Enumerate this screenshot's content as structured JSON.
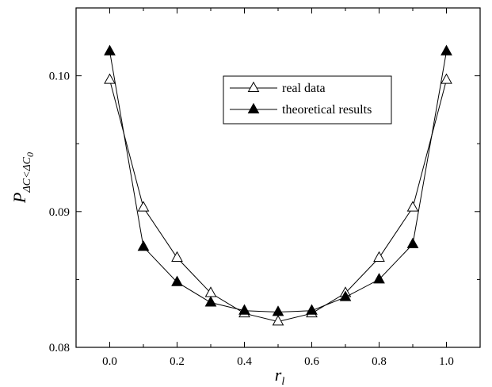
{
  "chart_data": {
    "type": "line",
    "xlabel": "r",
    "xlabel_sub": "l",
    "ylabel": "P",
    "ylabel_sub": "ΔC<ΔC",
    "ylabel_sub2": "0",
    "xlim": [
      -0.1,
      1.1
    ],
    "ylim": [
      0.08,
      0.105
    ],
    "xticks": [
      0.0,
      0.2,
      0.4,
      0.6,
      0.8,
      1.0
    ],
    "xtick_labels": [
      "0.0",
      "0.2",
      "0.4",
      "0.6",
      "0.8",
      "1.0"
    ],
    "yticks": [
      0.08,
      0.09,
      0.1
    ],
    "ytick_labels": [
      "0.08",
      "0.09",
      "0.10"
    ],
    "grid": false,
    "legend_position": "top-right",
    "x": [
      0.0,
      0.1,
      0.2,
      0.3,
      0.4,
      0.5,
      0.6,
      0.7,
      0.8,
      0.9,
      1.0
    ],
    "series": [
      {
        "name": "real data",
        "marker": "open-triangle",
        "values": [
          0.0997,
          0.0903,
          0.0866,
          0.084,
          0.0825,
          0.0819,
          0.0825,
          0.084,
          0.0866,
          0.0903,
          0.0997
        ]
      },
      {
        "name": "theoretical results",
        "marker": "filled-triangle",
        "values": [
          0.1018,
          0.0874,
          0.0848,
          0.0833,
          0.0827,
          0.0826,
          0.0827,
          0.0837,
          0.085,
          0.0876,
          0.1018
        ]
      }
    ]
  }
}
